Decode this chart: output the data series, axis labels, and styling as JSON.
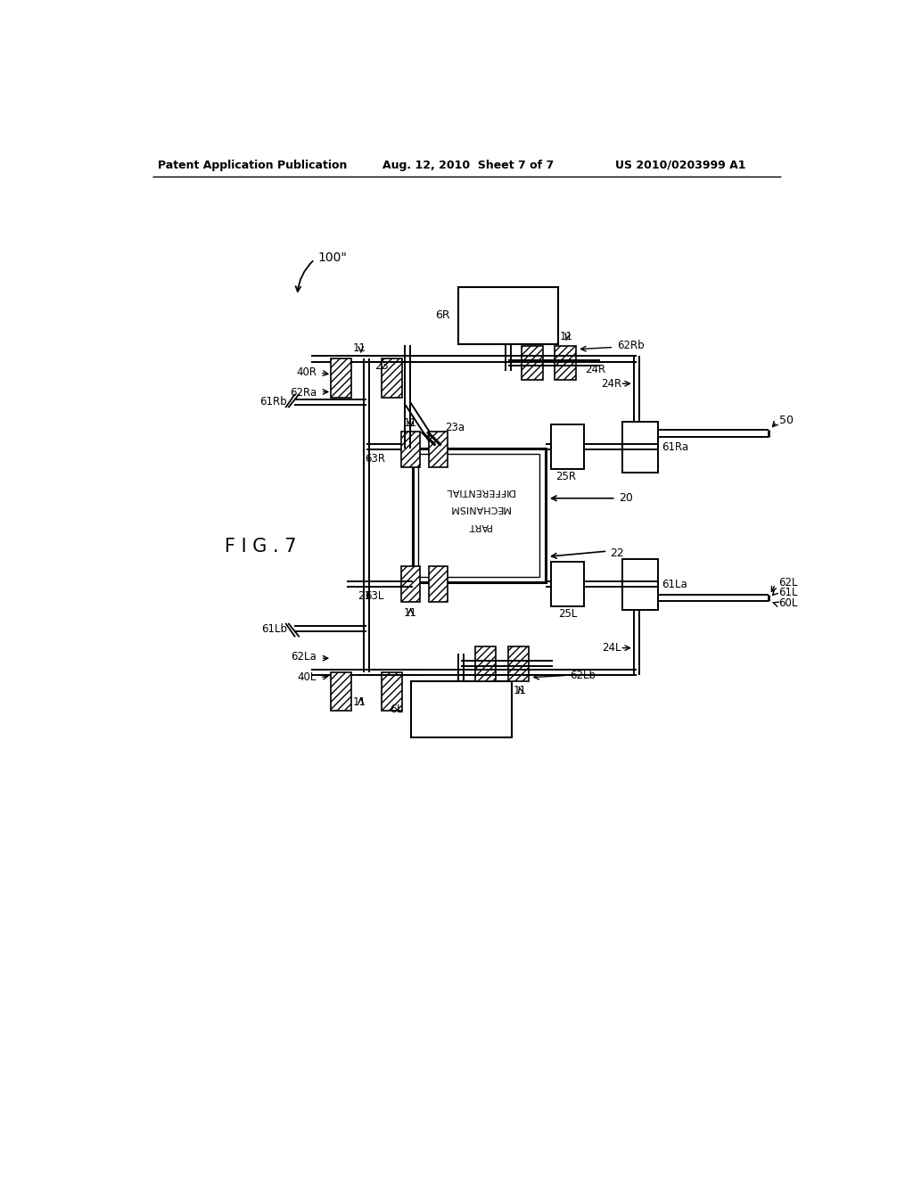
{
  "bg_color": "#ffffff",
  "header_left": "Patent Application Publication",
  "header_center": "Aug. 12, 2010  Sheet 7 of 7",
  "header_right": "US 2010/0203999 A1",
  "fig_label": "FIG. 7",
  "diagram_label": "100\""
}
